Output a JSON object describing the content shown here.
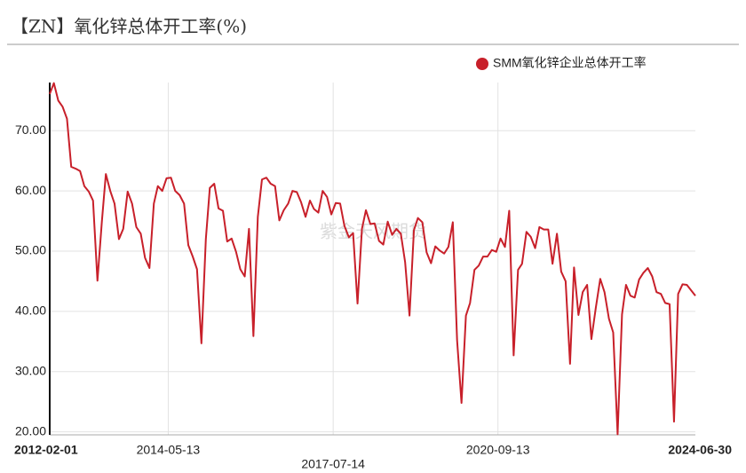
{
  "chart_data": {
    "type": "line",
    "title": "【ZN】氧化锌总体开工率(%)",
    "watermark": "紫金天风期货",
    "legend": "top-right",
    "grid": true,
    "series": [
      {
        "name": "SMM氧化锌企业总体开工率",
        "color": "#c8202a",
        "values": [
          76.1,
          77.9,
          75,
          74,
          72,
          64,
          63.7,
          63.3,
          60.8,
          59.9,
          58.4,
          45.1,
          54.9,
          62.8,
          60,
          57.9,
          52,
          53.7,
          59.9,
          57.9,
          54,
          52.9,
          48.9,
          47.2,
          57.9,
          60.8,
          60,
          62.1,
          62.2,
          60,
          59.3,
          57.9,
          51,
          49.1,
          47,
          34.7,
          52,
          60.5,
          61.2,
          57.1,
          56.7,
          51.6,
          52.1,
          49.9,
          47,
          45.8,
          53.7,
          35.9,
          55.7,
          61.9,
          62.2,
          61.2,
          60.8,
          55.1,
          56.8,
          57.9,
          60,
          59.8,
          58.1,
          55.7,
          58.4,
          57,
          56.4,
          60,
          59,
          56.1,
          58,
          57.9,
          54.2,
          52.3,
          53,
          41.3,
          53.7,
          56.8,
          54.5,
          54.6,
          51.7,
          51.1,
          54.9,
          52.7,
          53.7,
          52.9,
          48.2,
          39.3,
          53.5,
          55.5,
          54.8,
          49.8,
          48,
          50.8,
          50.1,
          49.6,
          50.7,
          54.8,
          35.2,
          24.8,
          39.3,
          41.4,
          46.9,
          47.6,
          49.1,
          49.1,
          50.2,
          49.9,
          52.1,
          50.7,
          56.7,
          32.7,
          46.9,
          47.9,
          53.2,
          52.4,
          50.5,
          54,
          53.6,
          53.6,
          47.9,
          52.9,
          46.6,
          45,
          31.3,
          47.3,
          39.4,
          43.2,
          44.4,
          35.4,
          40.6,
          45.4,
          43.2,
          38.8,
          36.5,
          19.6,
          39.5,
          44.4,
          42.6,
          42.3,
          45.3,
          46.4,
          47.2,
          45.8,
          43.2,
          42.9,
          41.4,
          41.2,
          21.7,
          42.9,
          44.5,
          44.4,
          42.6
        ]
      }
    ],
    "x": [
      "2012-02-01",
      "2012-03-01",
      "2012-04-01",
      "2012-05-01",
      "2012-06-01",
      "2012-07-01",
      "2012-08-01",
      "2012-09-01",
      "2012-10-01",
      "2012-11-01",
      "2012-12-01",
      "2013-01-01",
      "2013-02-01",
      "2013-03-01",
      "2013-04-01",
      "2013-05-01",
      "2013-06-01",
      "2013-07-01",
      "2013-08-01",
      "2013-09-01",
      "2013-10-01",
      "2013-11-01",
      "2013-12-01",
      "2014-01-01",
      "2014-02-01",
      "2014-03-01",
      "2014-04-01",
      "2014-05-01",
      "2014-06-01",
      "2014-07-01",
      "2014-08-01",
      "2014-09-01",
      "2014-10-01",
      "2014-11-01",
      "2014-12-01",
      "2015-01-01",
      "2015-02-01",
      "2015-03-01",
      "2015-04-01",
      "2015-05-01",
      "2015-06-01",
      "2015-07-01",
      "2015-08-01",
      "2015-09-01",
      "2015-10-01",
      "2015-11-01",
      "2015-12-01",
      "2016-01-01",
      "2016-02-01",
      "2016-03-01",
      "2016-04-01",
      "2016-05-01",
      "2016-06-01",
      "2016-07-01",
      "2016-08-01",
      "2016-09-01",
      "2016-10-01",
      "2016-11-01",
      "2016-12-01",
      "2017-01-01",
      "2017-02-01",
      "2017-03-01",
      "2017-04-01",
      "2017-05-01",
      "2017-06-01",
      "2017-07-01",
      "2017-08-01",
      "2017-09-01",
      "2017-10-01",
      "2017-11-01",
      "2017-12-01",
      "2018-01-01",
      "2018-02-01",
      "2018-03-01",
      "2018-04-01",
      "2018-05-01",
      "2018-06-01",
      "2018-07-01",
      "2018-08-01",
      "2018-09-01",
      "2018-10-01",
      "2018-11-01",
      "2018-12-01",
      "2019-01-01",
      "2019-02-01",
      "2019-03-01",
      "2019-04-01",
      "2019-05-01",
      "2019-06-01",
      "2019-07-01",
      "2019-08-01",
      "2019-09-01",
      "2019-10-01",
      "2019-11-01",
      "2019-12-01",
      "2020-01-01",
      "2020-02-01",
      "2020-03-01",
      "2020-04-01",
      "2020-05-01",
      "2020-06-01",
      "2020-07-01",
      "2020-08-01",
      "2020-09-01",
      "2020-10-01",
      "2020-11-01",
      "2020-12-01",
      "2021-01-01",
      "2021-02-01",
      "2021-03-01",
      "2021-04-01",
      "2021-05-01",
      "2021-06-01",
      "2021-07-01",
      "2021-08-01",
      "2021-09-01",
      "2021-10-01",
      "2021-11-01",
      "2021-12-01",
      "2022-01-01",
      "2022-02-01",
      "2022-03-01",
      "2022-04-01",
      "2022-05-01",
      "2022-06-01",
      "2022-07-01",
      "2022-08-01",
      "2022-09-01",
      "2022-10-01",
      "2022-11-01",
      "2022-12-01",
      "2023-01-01",
      "2023-02-01",
      "2023-03-01",
      "2023-04-01",
      "2023-05-01",
      "2023-06-01",
      "2023-07-01",
      "2023-08-01",
      "2023-09-01",
      "2023-10-01",
      "2023-11-01",
      "2023-12-01",
      "2024-01-01",
      "2024-02-01",
      "2024-03-01",
      "2024-04-01",
      "2024-05-01",
      "2024-06-30"
    ],
    "xlim": [
      "2012-02-01",
      "2024-06-30"
    ],
    "xticks": [
      "2012-02-01",
      "2014-05-13",
      "2017-07-14",
      "2020-09-13",
      "2024-06-30"
    ],
    "ylim": [
      19.5,
      78
    ],
    "yticks": [
      {
        "value": 20,
        "label": "20.00"
      },
      {
        "value": 30,
        "label": "30.00"
      },
      {
        "value": 40,
        "label": "40.00"
      },
      {
        "value": 50,
        "label": "50.00"
      },
      {
        "value": 60,
        "label": "60.00"
      },
      {
        "value": 70,
        "label": "70.00"
      }
    ]
  }
}
